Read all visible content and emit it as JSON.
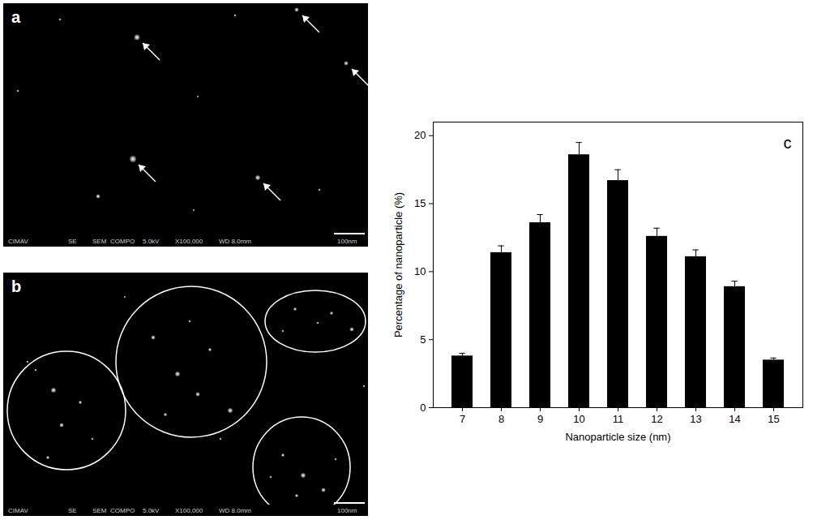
{
  "chart_data": {
    "type": "bar",
    "panel_label": "c",
    "xlabel": "Nanoparticle size (nm)",
    "ylabel": "Percentage of nanoparticle (%)",
    "categories": [
      "7",
      "8",
      "9",
      "10",
      "11",
      "12",
      "13",
      "14",
      "15"
    ],
    "values": [
      3.8,
      11.4,
      13.6,
      18.6,
      16.7,
      12.6,
      11.1,
      8.9,
      3.5
    ],
    "error": [
      0.2,
      0.5,
      0.6,
      0.9,
      0.8,
      0.6,
      0.5,
      0.4,
      0.15
    ],
    "color": "#000000",
    "ylim": [
      0,
      21
    ],
    "yticks": [
      0,
      5,
      10,
      15,
      20
    ],
    "grid": false
  },
  "micrographs": [
    {
      "panel_label": "a",
      "info_bar": [
        "CIMAV",
        "SE",
        "SEM",
        "COMPO",
        "5.0kV",
        "X100,000",
        "WD 8.0mm",
        "100nm"
      ]
    },
    {
      "panel_label": "b",
      "info_bar": [
        "CIMAV",
        "SE",
        "SEM",
        "COMPO",
        "5.0kV",
        "X100,000",
        "WD 8.0mm",
        "100nm"
      ]
    }
  ]
}
